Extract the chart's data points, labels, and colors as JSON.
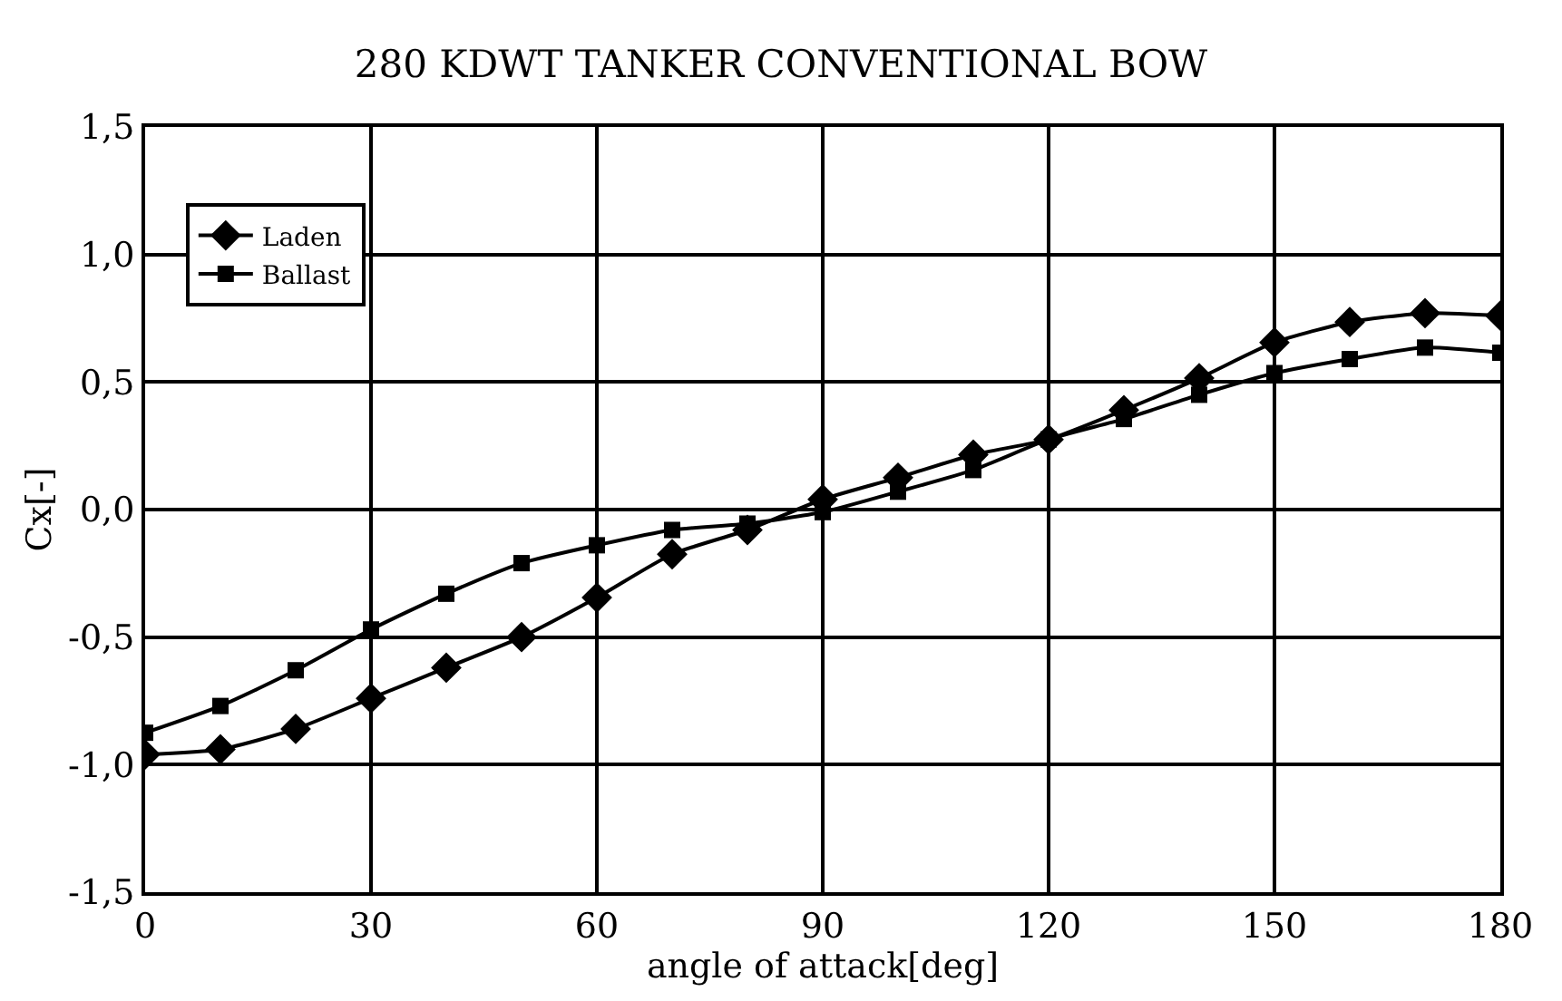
{
  "chart_data": {
    "type": "line",
    "title": "280 KDWT TANKER CONVENTIONAL BOW",
    "xlabel": "angle of attack[deg]",
    "ylabel": "Cx[-]",
    "x": [
      0,
      10,
      20,
      30,
      40,
      50,
      60,
      70,
      80,
      90,
      100,
      110,
      120,
      130,
      140,
      150,
      160,
      170,
      180
    ],
    "series": [
      {
        "name": "Laden",
        "color": "#000000",
        "marker": "diamond",
        "values": [
          -0.96,
          -0.94,
          -0.86,
          -0.74,
          -0.62,
          -0.5,
          -0.345,
          -0.175,
          -0.08,
          0.04,
          0.125,
          0.215,
          0.275,
          0.39,
          0.515,
          0.655,
          0.735,
          0.77,
          0.76
        ]
      },
      {
        "name": "Ballast",
        "color": "#000000",
        "marker": "square",
        "values": [
          -0.875,
          -0.77,
          -0.63,
          -0.47,
          -0.33,
          -0.21,
          -0.14,
          -0.08,
          -0.055,
          -0.01,
          0.07,
          0.155,
          0.275,
          0.355,
          0.45,
          0.535,
          0.59,
          0.635,
          0.615
        ]
      }
    ],
    "xlim": [
      0,
      180
    ],
    "xticks": [
      0,
      30,
      60,
      90,
      120,
      150,
      180
    ],
    "ylim": [
      -1.5,
      1.5
    ],
    "yticks": [
      {
        "value": -1.5,
        "label": "-1,5"
      },
      {
        "value": -1.0,
        "label": "-1,0"
      },
      {
        "value": -0.5,
        "label": "-0,5"
      },
      {
        "value": 0,
        "label": "0,0"
      },
      {
        "value": 0.5,
        "label": "0,5"
      },
      {
        "value": 1.0,
        "label": "1,0"
      },
      {
        "value": 1.5,
        "label": "1,5"
      }
    ],
    "grid": true,
    "legend": "top left",
    "line_style": "solid"
  }
}
